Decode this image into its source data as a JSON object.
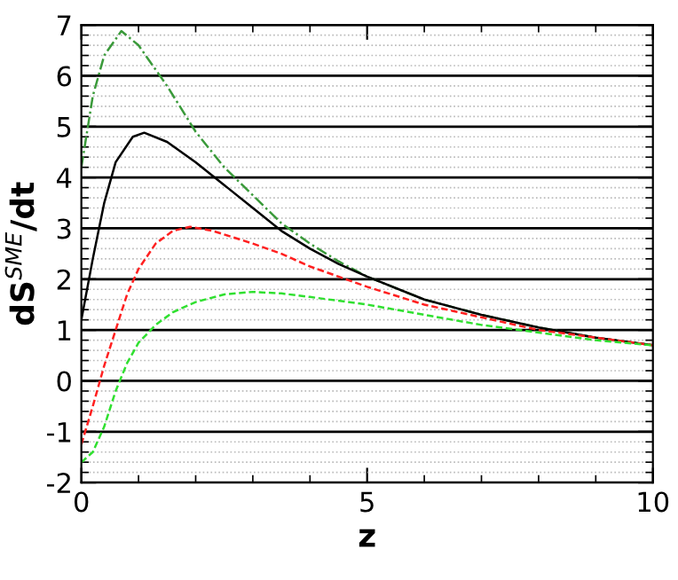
{
  "chart_data": {
    "type": "line",
    "xlabel": "z",
    "ylabel": "dS$^{SME}$/dt",
    "xlim": [
      0,
      10
    ],
    "xticks": [
      0,
      5,
      10
    ],
    "ylim": [
      -2,
      7
    ],
    "yticks": [
      -2,
      -1,
      0,
      1,
      2,
      3,
      4,
      5,
      6,
      7
    ],
    "grid": "y",
    "series": [
      {
        "color": "#3a9a3a",
        "line_style": "dashdot",
        "x": [
          0,
          0.2,
          0.4,
          0.7,
          1.0,
          1.5,
          2,
          2.5,
          3,
          3.5,
          4,
          4.5,
          5,
          6,
          7,
          8,
          9,
          10
        ],
        "values": [
          4.2,
          5.6,
          6.4,
          6.88,
          6.6,
          5.8,
          4.9,
          4.2,
          3.65,
          3.1,
          2.7,
          2.35,
          2.05,
          1.6,
          1.3,
          1.05,
          0.85,
          0.7
        ]
      },
      {
        "color": "#000000",
        "line_style": "solid",
        "x": [
          0,
          0.2,
          0.4,
          0.6,
          0.9,
          1.1,
          1.5,
          2,
          2.5,
          3,
          3.5,
          4,
          4.5,
          5,
          6,
          7,
          8,
          9,
          10
        ],
        "values": [
          1.2,
          2.4,
          3.5,
          4.3,
          4.8,
          4.88,
          4.7,
          4.3,
          3.85,
          3.4,
          2.95,
          2.6,
          2.3,
          2.05,
          1.6,
          1.3,
          1.05,
          0.85,
          0.7
        ]
      },
      {
        "color": "#ff2020",
        "line_style": "dashed",
        "x": [
          0,
          0.2,
          0.4,
          0.6,
          0.8,
          1.0,
          1.3,
          1.6,
          1.9,
          2.3,
          3,
          3.5,
          4,
          4.5,
          5,
          6,
          7,
          8,
          9,
          10
        ],
        "values": [
          -1.25,
          -0.5,
          0.3,
          1.0,
          1.7,
          2.2,
          2.7,
          2.95,
          3.03,
          2.95,
          2.7,
          2.5,
          2.25,
          2.05,
          1.85,
          1.5,
          1.25,
          1.0,
          0.85,
          0.7
        ]
      },
      {
        "color": "#30e030",
        "line_style": "dashed",
        "x": [
          0,
          0.2,
          0.4,
          0.6,
          0.8,
          1.0,
          1.3,
          1.6,
          2,
          2.5,
          3,
          3.5,
          4,
          5,
          6,
          7,
          8,
          9,
          10
        ],
        "values": [
          -1.6,
          -1.4,
          -0.9,
          -0.2,
          0.35,
          0.75,
          1.1,
          1.35,
          1.55,
          1.7,
          1.75,
          1.72,
          1.65,
          1.5,
          1.3,
          1.1,
          0.95,
          0.8,
          0.7
        ]
      }
    ]
  }
}
